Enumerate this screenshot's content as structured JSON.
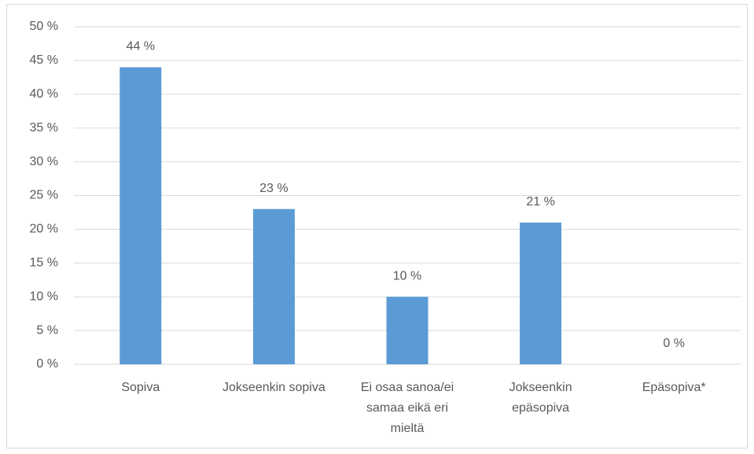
{
  "chart_data": {
    "type": "bar",
    "categories": [
      "Sopiva",
      "Jokseenkin sopiva",
      "Ei osaa sanoa/ei samaa eikä eri mieltä",
      "Jokseenkin epäsopiva",
      "Epäsopiva*"
    ],
    "values": [
      44,
      23,
      10,
      21,
      0
    ],
    "value_labels": [
      "44 %",
      "23 %",
      "10 %",
      "21 %",
      "0 %"
    ],
    "color": "#5b9bd5",
    "ylim": [
      0,
      50
    ],
    "yticks": [
      {
        "value": 0,
        "label": "0 %"
      },
      {
        "value": 5,
        "label": "5 %"
      },
      {
        "value": 10,
        "label": "10 %"
      },
      {
        "value": 15,
        "label": "15 %"
      },
      {
        "value": 20,
        "label": "20 %"
      },
      {
        "value": 25,
        "label": "25 %"
      },
      {
        "value": 30,
        "label": "30 %"
      },
      {
        "value": 35,
        "label": "35 %"
      },
      {
        "value": 40,
        "label": "40 %"
      },
      {
        "value": 45,
        "label": "45 %"
      },
      {
        "value": 50,
        "label": "50 %"
      }
    ],
    "grid": true
  }
}
